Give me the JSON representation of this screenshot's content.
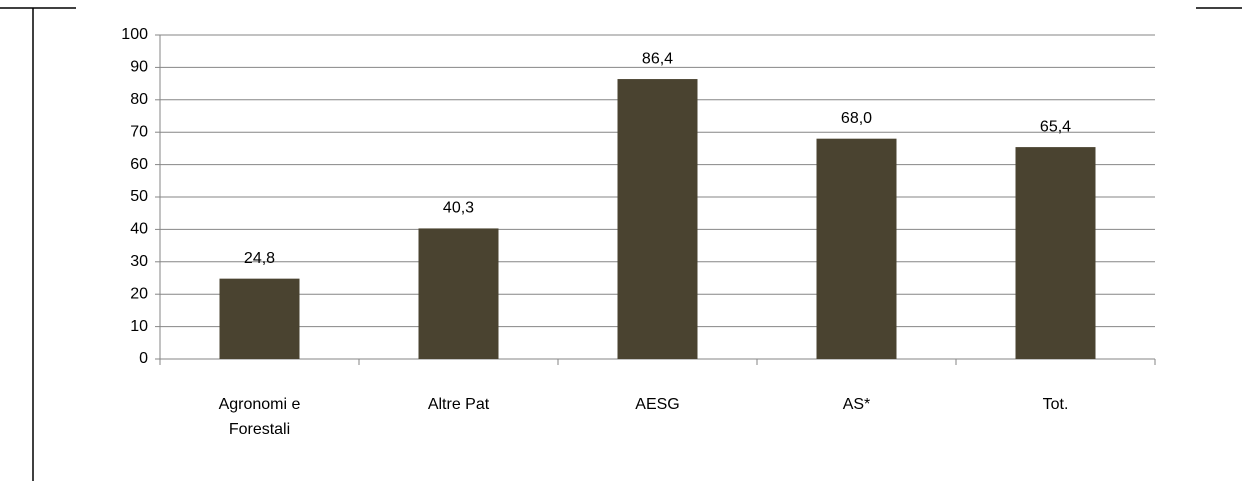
{
  "chart_data": {
    "type": "bar",
    "categories": [
      "Agronomi e Forestali",
      "Altre Pat",
      "AESG",
      "AS*",
      "Tot."
    ],
    "values": [
      24.8,
      40.3,
      86.4,
      68.0,
      65.4
    ],
    "value_labels": [
      "24,8",
      "40,3",
      "86,4",
      "68,0",
      "65,4"
    ],
    "color": "#4a4330",
    "ylim": [
      0,
      100
    ],
    "yticks": [
      0,
      10,
      20,
      30,
      40,
      50,
      60,
      70,
      80,
      90,
      100
    ],
    "grid": true
  }
}
